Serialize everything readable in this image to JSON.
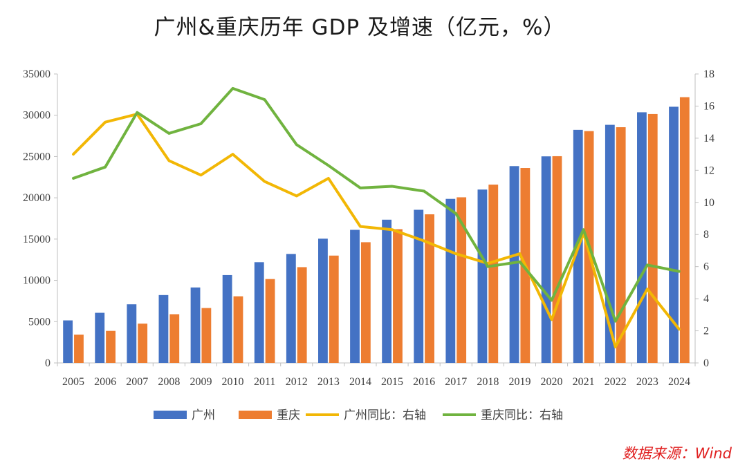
{
  "chart_data": {
    "type": "bar",
    "title": "广州&重庆历年 GDP 及增速（亿元，%）",
    "categories": [
      "2005",
      "2006",
      "2007",
      "2008",
      "2009",
      "2010",
      "2011",
      "2012",
      "2013",
      "2014",
      "2015",
      "2016",
      "2017",
      "2018",
      "2019",
      "2020",
      "2021",
      "2022",
      "2023",
      "2024"
    ],
    "series": [
      {
        "name": "广州",
        "kind": "bar",
        "axis": "left",
        "color": "#4472C4",
        "values": [
          5150,
          6070,
          7100,
          8220,
          9140,
          10640,
          12200,
          13200,
          15050,
          16120,
          17350,
          18550,
          19870,
          21000,
          23840,
          25020,
          28230,
          28840,
          30360,
          31030
        ]
      },
      {
        "name": "重庆",
        "kind": "bar",
        "axis": "left",
        "color": "#ED7D31",
        "values": [
          3430,
          3880,
          4760,
          5900,
          6650,
          8070,
          10160,
          11600,
          13000,
          14620,
          16200,
          18000,
          20060,
          21600,
          23610,
          25040,
          28080,
          28550,
          30150,
          32190
        ]
      },
      {
        "name": "广州同比：右轴",
        "kind": "line",
        "axis": "right",
        "color": "#F2B705",
        "values": [
          13.0,
          15.0,
          15.5,
          12.6,
          11.7,
          13.0,
          11.3,
          10.4,
          11.5,
          8.5,
          8.3,
          7.6,
          6.8,
          6.2,
          6.8,
          2.7,
          8.1,
          1.0,
          4.6,
          2.1
        ]
      },
      {
        "name": "重庆同比：右轴",
        "kind": "line",
        "axis": "right",
        "color": "#70B33F",
        "values": [
          11.5,
          12.2,
          15.6,
          14.3,
          14.9,
          17.1,
          16.4,
          13.6,
          12.3,
          10.9,
          11.0,
          10.7,
          9.3,
          6.0,
          6.3,
          3.9,
          8.3,
          2.6,
          6.1,
          5.7
        ]
      }
    ],
    "ylim_left": [
      0,
      35000
    ],
    "yticks_left": [
      "0",
      "5000",
      "10000",
      "15000",
      "20000",
      "25000",
      "30000",
      "35000"
    ],
    "ylim_right": [
      0,
      18
    ],
    "yticks_right": [
      "0",
      "2",
      "4",
      "6",
      "8",
      "10",
      "12",
      "14",
      "16",
      "18"
    ],
    "legend_position": "bottom",
    "grid": false
  },
  "source": "数据来源：Wind"
}
